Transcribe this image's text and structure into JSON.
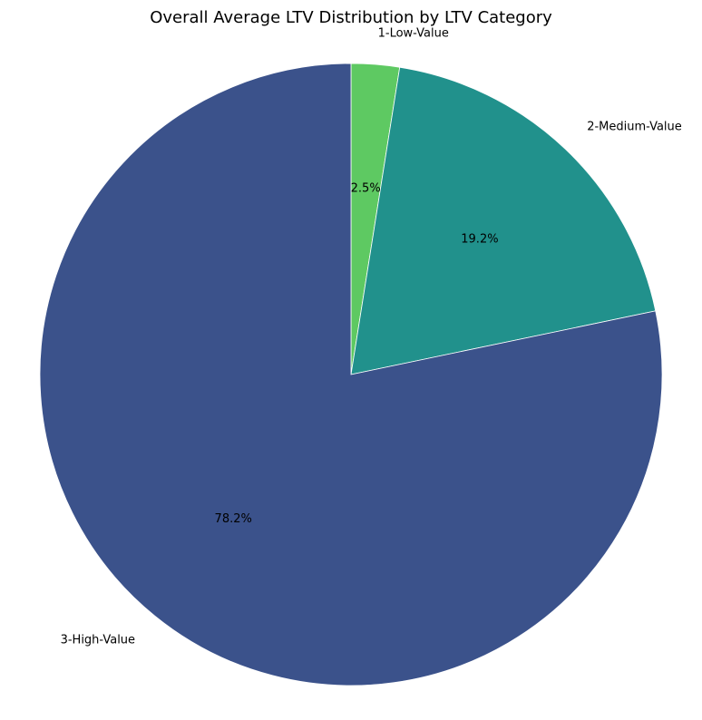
{
  "chart_data": {
    "type": "pie",
    "title": "Overall Average LTV Distribution by LTV Category",
    "start_angle_deg": 90,
    "direction": "clockwise",
    "slices": [
      {
        "label": "1-Low-Value",
        "percent": 2.5,
        "percent_label": "2.5%",
        "color": "#5ec962"
      },
      {
        "label": "2-Medium-Value",
        "percent": 19.2,
        "percent_label": "19.2%",
        "color": "#21918c"
      },
      {
        "label": "3-High-Value",
        "percent": 78.2,
        "percent_label": "78.2%",
        "color": "#3b528b"
      }
    ]
  }
}
